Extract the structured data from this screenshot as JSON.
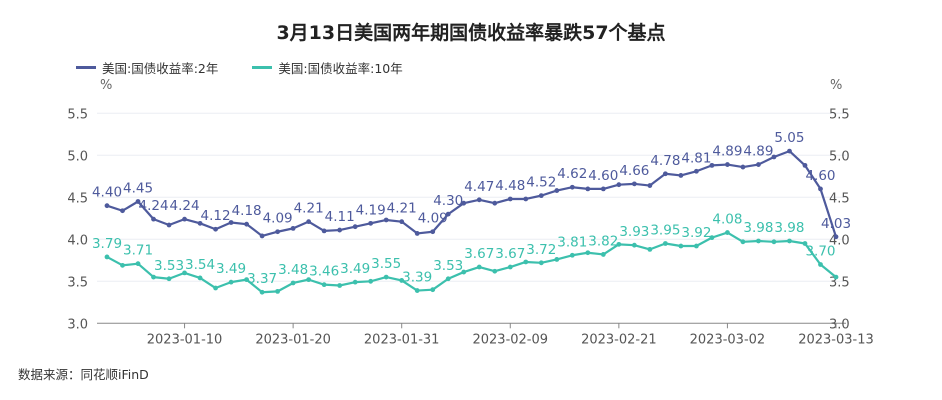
{
  "chart_data": {
    "type": "line",
    "title": "3月13日美国两年期国债收益率暴跌57个基点",
    "ylabel_left": "%",
    "ylabel_right": "%",
    "ylim": [
      3.0,
      5.5
    ],
    "yticks": [
      "3.0",
      "3.5",
      "4.0",
      "4.5",
      "5.0",
      "5.5"
    ],
    "grid": true,
    "legend_position": "top-left",
    "x": [
      "2023-01-03",
      "2023-01-04",
      "2023-01-05",
      "2023-01-06",
      "2023-01-09",
      "2023-01-10",
      "2023-01-11",
      "2023-01-12",
      "2023-01-13",
      "2023-01-17",
      "2023-01-18",
      "2023-01-19",
      "2023-01-20",
      "2023-01-23",
      "2023-01-24",
      "2023-01-25",
      "2023-01-26",
      "2023-01-27",
      "2023-01-30",
      "2023-01-31",
      "2023-02-01",
      "2023-02-02",
      "2023-02-03",
      "2023-02-06",
      "2023-02-07",
      "2023-02-08",
      "2023-02-09",
      "2023-02-10",
      "2023-02-13",
      "2023-02-14",
      "2023-02-15",
      "2023-02-16",
      "2023-02-17",
      "2023-02-21",
      "2023-02-22",
      "2023-02-23",
      "2023-02-24",
      "2023-02-27",
      "2023-02-28",
      "2023-03-01",
      "2023-03-02",
      "2023-03-03",
      "2023-03-06",
      "2023-03-07",
      "2023-03-08",
      "2023-03-09",
      "2023-03-10",
      "2023-03-13"
    ],
    "xticks": [
      "2023-01-10",
      "2023-01-20",
      "2023-01-31",
      "2023-02-09",
      "2023-02-21",
      "2023-03-02",
      "2023-03-13"
    ],
    "series": [
      {
        "name": "美国:国债收益率:2年",
        "color": "#4e5a9c",
        "values": [
          4.4,
          4.34,
          4.45,
          4.24,
          4.17,
          4.24,
          4.19,
          4.12,
          4.2,
          4.18,
          4.04,
          4.09,
          4.13,
          4.21,
          4.1,
          4.11,
          4.15,
          4.19,
          4.23,
          4.21,
          4.07,
          4.09,
          4.3,
          4.43,
          4.47,
          4.43,
          4.48,
          4.48,
          4.52,
          4.58,
          4.62,
          4.6,
          4.6,
          4.65,
          4.66,
          4.64,
          4.78,
          4.76,
          4.81,
          4.88,
          4.89,
          4.86,
          4.89,
          4.98,
          5.05,
          4.88,
          4.6,
          4.03
        ],
        "data_labels": [
          "4.40",
          null,
          "4.45",
          "4.24",
          null,
          "4.24",
          null,
          "4.12",
          null,
          "4.18",
          null,
          "4.09",
          null,
          "4.21",
          null,
          "4.11",
          null,
          "4.19",
          null,
          "4.21",
          null,
          "4.09",
          "4.30",
          null,
          "4.47",
          null,
          "4.48",
          null,
          "4.52",
          null,
          "4.62",
          null,
          "4.60",
          null,
          "4.66",
          null,
          "4.78",
          null,
          "4.81",
          null,
          "4.89",
          null,
          "4.89",
          null,
          "5.05",
          null,
          "4.60",
          "4.03"
        ]
      },
      {
        "name": "美国:国债收益率:10年",
        "color": "#3cc0ad",
        "values": [
          3.79,
          3.69,
          3.71,
          3.55,
          3.53,
          3.6,
          3.54,
          3.42,
          3.49,
          3.52,
          3.37,
          3.38,
          3.48,
          3.52,
          3.46,
          3.45,
          3.49,
          3.5,
          3.55,
          3.51,
          3.39,
          3.4,
          3.53,
          3.61,
          3.67,
          3.62,
          3.67,
          3.73,
          3.72,
          3.76,
          3.81,
          3.84,
          3.82,
          3.94,
          3.93,
          3.88,
          3.95,
          3.92,
          3.92,
          4.02,
          4.08,
          3.97,
          3.98,
          3.97,
          3.98,
          3.95,
          3.7,
          3.55
        ],
        "data_labels": [
          "3.79",
          null,
          "3.71",
          null,
          "3.53",
          null,
          "3.54",
          null,
          "3.49",
          null,
          "3.37",
          null,
          "3.48",
          null,
          "3.46",
          null,
          "3.49",
          null,
          "3.55",
          null,
          "3.39",
          null,
          "3.53",
          null,
          "3.67",
          null,
          "3.67",
          null,
          "3.72",
          null,
          "3.81",
          null,
          "3.82",
          null,
          "3.93",
          null,
          "3.95",
          null,
          "3.92",
          null,
          "4.08",
          null,
          "3.98",
          null,
          "3.98",
          null,
          "3.70",
          null
        ]
      }
    ]
  },
  "source": "数据来源：同花顺iFinD"
}
